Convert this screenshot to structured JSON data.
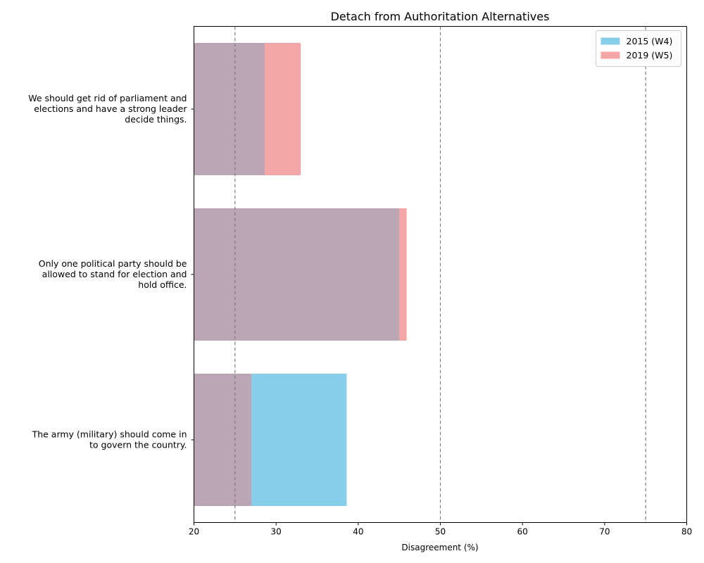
{
  "chart_data": {
    "type": "bar",
    "orientation": "horizontal",
    "title": "Detach from Authoritation Alternatives",
    "xlabel": "Disagreement (%)",
    "ylabel": "",
    "xlim": [
      20,
      80
    ],
    "xticks": [
      20,
      30,
      40,
      50,
      60,
      70,
      80
    ],
    "reference_lines": [
      25,
      50,
      75
    ],
    "categories": [
      [
        "We should get rid of parliament and",
        "elections and have a strong leader",
        "decide things."
      ],
      [
        "Only one political party should be",
        "allowed to stand for election and",
        "hold office."
      ],
      [
        "The army (military) should come in",
        "to govern the country."
      ]
    ],
    "series": [
      {
        "name": "2015 (W4)",
        "color": "#87CEEB",
        "values": [
          28.6,
          45.0,
          38.6
        ]
      },
      {
        "name": "2019 (W5)",
        "color": "#F4A6A6",
        "values": [
          33.0,
          45.9,
          27.0
        ]
      }
    ],
    "overlap_color": "#BAA6B4",
    "legend": {
      "position": "top-right"
    },
    "grid": false
  }
}
